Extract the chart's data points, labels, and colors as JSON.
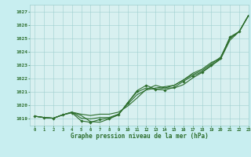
{
  "xlabel": "Graphe pression niveau de la mer (hPa)",
  "xlim": [
    -0.5,
    23
  ],
  "ylim": [
    1018.5,
    1027.5
  ],
  "yticks": [
    1019,
    1020,
    1021,
    1022,
    1023,
    1024,
    1025,
    1026,
    1027
  ],
  "xticks": [
    0,
    1,
    2,
    3,
    4,
    5,
    6,
    7,
    8,
    9,
    10,
    11,
    12,
    13,
    14,
    15,
    16,
    17,
    18,
    19,
    20,
    21,
    22,
    23
  ],
  "background_color": "#c8eef0",
  "plot_bg_color": "#d8f0f0",
  "grid_color": "#9ecece",
  "line_color": "#2d6e2d",
  "series": {
    "line1": [
      1019.2,
      1019.1,
      1019.05,
      1019.3,
      1019.45,
      1018.85,
      1018.75,
      1018.95,
      1019.05,
      1019.3,
      1020.2,
      1021.1,
      1021.5,
      1021.2,
      1021.15,
      1021.35,
      1021.8,
      1022.2,
      1022.5,
      1023.0,
      1023.5,
      1025.1,
      1025.5,
      1026.7
    ],
    "line2": [
      1019.2,
      1019.1,
      1019.05,
      1019.3,
      1019.5,
      1019.35,
      1019.25,
      1019.35,
      1019.35,
      1019.5,
      1019.95,
      1020.55,
      1021.2,
      1021.5,
      1021.3,
      1021.3,
      1021.55,
      1022.05,
      1022.45,
      1022.95,
      1023.45,
      1024.85,
      1025.5,
      1026.7
    ],
    "line3": [
      1019.2,
      1019.1,
      1019.05,
      1019.3,
      1019.5,
      1019.25,
      1018.8,
      1018.75,
      1019.0,
      1019.3,
      1020.2,
      1021.0,
      1021.3,
      1021.2,
      1021.3,
      1021.5,
      1021.9,
      1022.3,
      1022.6,
      1023.1,
      1023.6,
      1025.0,
      1025.5,
      1026.7
    ],
    "line4": [
      1019.2,
      1019.1,
      1019.05,
      1019.3,
      1019.5,
      1019.05,
      1019.0,
      1019.1,
      1019.1,
      1019.35,
      1020.1,
      1020.8,
      1021.15,
      1021.3,
      1021.4,
      1021.5,
      1021.9,
      1022.4,
      1022.7,
      1023.2,
      1023.5,
      1025.0,
      1025.5,
      1026.7
    ]
  }
}
